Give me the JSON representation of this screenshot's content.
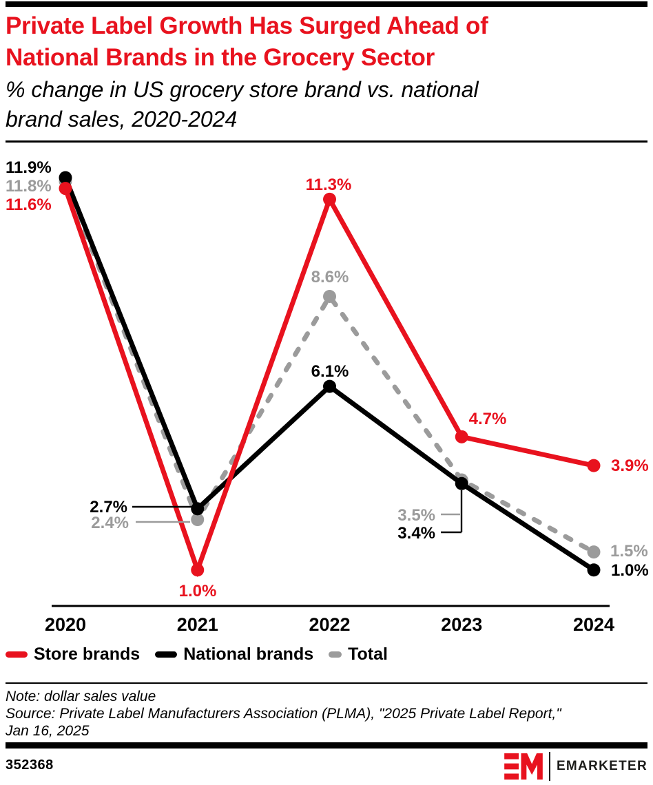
{
  "header": {
    "title_line1": "Private Label Growth Has Surged Ahead of",
    "title_line2": "National Brands in the Grocery Sector",
    "subtitle_line1": "% change in US grocery store brand vs. national",
    "subtitle_line2": "brand sales, 2020-2024",
    "title_color": "#e8121e"
  },
  "chart_data": {
    "type": "line",
    "categories": [
      "2020",
      "2021",
      "2022",
      "2023",
      "2024"
    ],
    "series": [
      {
        "name": "Store brands",
        "color": "#e8121e",
        "style": "solid",
        "values": [
          11.6,
          1.0,
          11.3,
          4.7,
          3.9
        ],
        "labels": [
          "11.6%",
          "1.0%",
          "11.3%",
          "4.7%",
          "3.9%"
        ]
      },
      {
        "name": "National brands",
        "color": "#000000",
        "style": "solid",
        "values": [
          11.9,
          2.7,
          6.1,
          3.4,
          1.0
        ],
        "labels": [
          "11.9%",
          "2.7%",
          "6.1%",
          "3.4%",
          "1.0%"
        ]
      },
      {
        "name": "Total",
        "color": "#9b9b9b",
        "style": "dashed",
        "values": [
          11.8,
          2.4,
          8.6,
          3.5,
          1.5
        ],
        "labels": [
          "11.8%",
          "2.4%",
          "8.6%",
          "3.5%",
          "1.5%"
        ]
      }
    ],
    "xlabel": "",
    "ylabel": "",
    "ylim": [
      0,
      12.6
    ],
    "grid": false,
    "legend_position": "bottom",
    "label_format": "{value}%"
  },
  "notes": {
    "note": "Note: dollar sales value",
    "source_line1": "Source: Private Label Manufacturers Association (PLMA), \"2025 Private Label Report,\"",
    "source_line2": "Jan 16, 2025"
  },
  "footer": {
    "chart_id": "352368",
    "brand": "EMARKETER"
  }
}
